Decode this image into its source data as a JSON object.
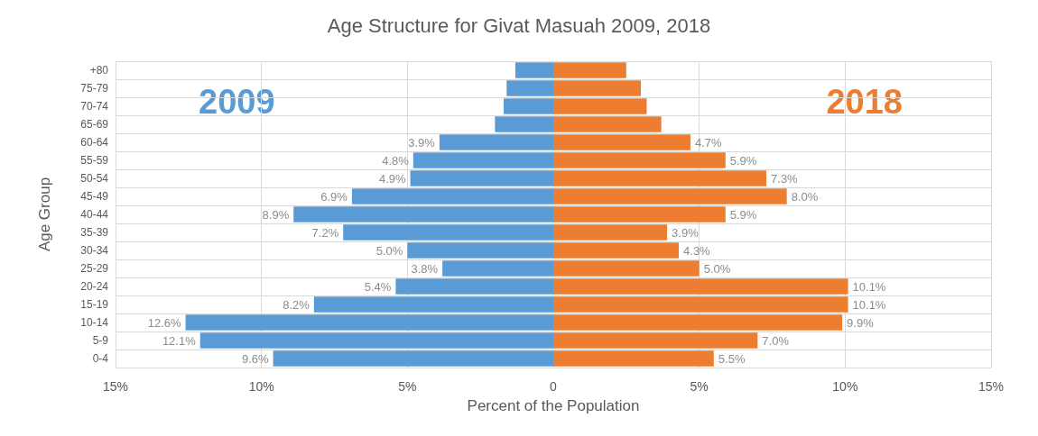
{
  "chart_data": {
    "type": "bar",
    "orientation": "horizontal",
    "title": "Age Structure for Givat Masuah 2009, 2018",
    "xlabel": "Percent of the Population",
    "ylabel": "Age Group",
    "categories": [
      "+80",
      "75-79",
      "70-74",
      "65-69",
      "60-64",
      "55-59",
      "50-54",
      "45-49",
      "40-44",
      "35-39",
      "30-34",
      "25-29",
      "20-24",
      "15-19",
      "10-14",
      "5-9",
      "0-4"
    ],
    "series": [
      {
        "name": "2009",
        "color": "#5b9bd5",
        "values": [
          1.3,
          1.6,
          1.7,
          2.0,
          3.9,
          4.8,
          4.9,
          6.9,
          8.9,
          7.2,
          5.0,
          3.8,
          5.4,
          8.2,
          12.6,
          12.1,
          9.6
        ],
        "base": [
          -1.3,
          -1.6,
          -1.7,
          -2.0,
          -3.9,
          -4.8,
          -4.9,
          -6.9,
          -8.9,
          -7.2,
          -5.0,
          -3.8,
          -5.4,
          -8.2,
          -12.6,
          -12.1,
          -9.6
        ],
        "value_labels": [
          null,
          null,
          null,
          null,
          "3.9%",
          "4.8%",
          "4.9%",
          "6.9%",
          "8.9%",
          "7.2%",
          "5.0%",
          "3.8%",
          "5.4%",
          "8.2%",
          "12.6%",
          "12.1%",
          "9.6%"
        ]
      },
      {
        "name": "2018",
        "color": "#ed7d31",
        "values": [
          2.5,
          3.0,
          3.2,
          3.7,
          4.7,
          5.9,
          7.3,
          8.0,
          5.9,
          3.9,
          4.3,
          5.0,
          10.1,
          10.1,
          9.9,
          7.0,
          5.5
        ],
        "value_labels": [
          null,
          null,
          null,
          null,
          "4.7%",
          "5.9%",
          "7.3%",
          "8.0%",
          "5.9%",
          "3.9%",
          "4.3%",
          "5.0%",
          "10.1%",
          "10.1%",
          "9.9%",
          "7.0%",
          "5.5%"
        ]
      }
    ],
    "xlim": [
      -15,
      15
    ],
    "xticks": [
      {
        "value": -15,
        "label": "15%"
      },
      {
        "value": -10,
        "label": "10%"
      },
      {
        "value": -5,
        "label": "5%"
      },
      {
        "value": 0,
        "label": "0"
      },
      {
        "value": 5,
        "label": "5%"
      },
      {
        "value": 10,
        "label": "10%"
      },
      {
        "value": 15,
        "label": "15%"
      }
    ],
    "grid": true
  }
}
